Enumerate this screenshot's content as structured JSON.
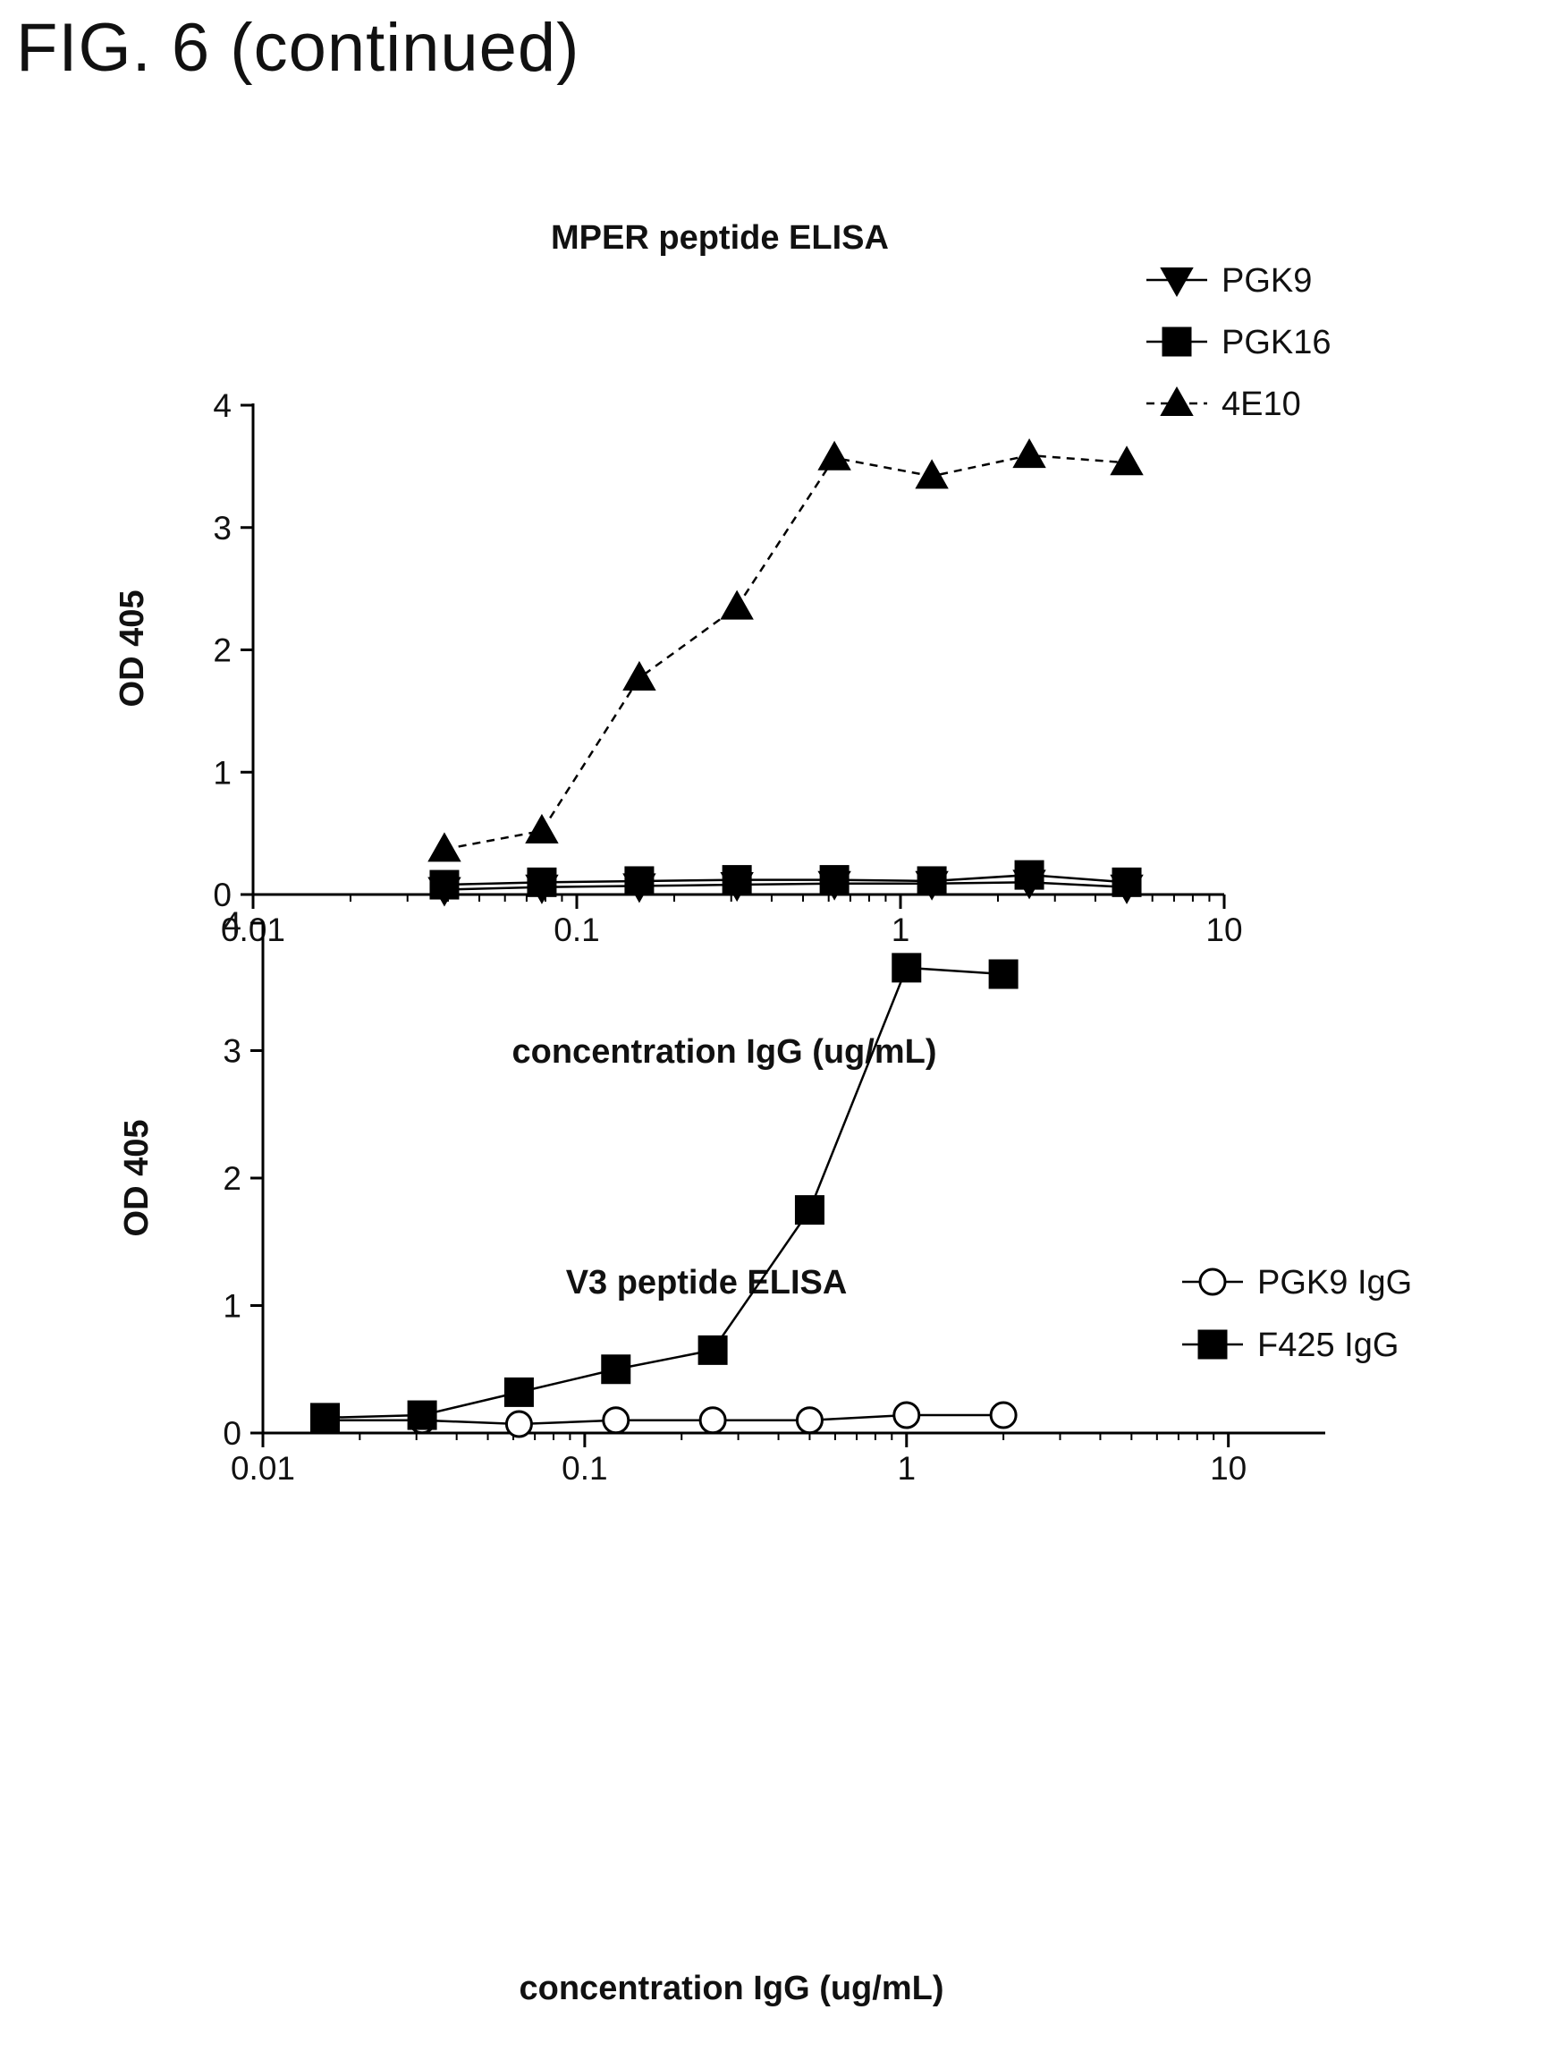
{
  "figure_title": "FIG. 6 (continued)",
  "chart_data": [
    {
      "type": "line",
      "title": "MPER peptide ELISA",
      "xlabel": "concentration IgG (ug/mL)",
      "ylabel": "OD 405",
      "xscale": "log",
      "xlim": [
        0.01,
        10
      ],
      "ylim": [
        0,
        4
      ],
      "xticks": [
        0.01,
        0.1,
        1,
        10
      ],
      "xtick_labels": [
        "0.01",
        "0.1",
        "1",
        "10"
      ],
      "yticks": [
        0,
        1,
        2,
        3,
        4
      ],
      "ytick_labels": [
        "0",
        "1",
        "2",
        "3",
        "4"
      ],
      "legend_position": "top-right",
      "series": [
        {
          "name": "PGK9",
          "marker": "triangle-down",
          "fill": "#000000",
          "dash": "solid",
          "x": [
            0.039,
            0.078,
            0.156,
            0.3125,
            0.625,
            1.25,
            2.5,
            5
          ],
          "y": [
            0.04,
            0.06,
            0.07,
            0.08,
            0.09,
            0.09,
            0.1,
            0.06
          ]
        },
        {
          "name": "PGK16",
          "marker": "square",
          "fill": "#000000",
          "dash": "solid",
          "x": [
            0.039,
            0.078,
            0.156,
            0.3125,
            0.625,
            1.25,
            2.5,
            5
          ],
          "y": [
            0.08,
            0.1,
            0.11,
            0.12,
            0.12,
            0.11,
            0.16,
            0.1
          ]
        },
        {
          "name": "4E10",
          "marker": "triangle-up",
          "fill": "#000000",
          "dash": "dashed",
          "x": [
            0.039,
            0.078,
            0.156,
            0.3125,
            0.625,
            1.25,
            2.5,
            5
          ],
          "y": [
            0.37,
            0.52,
            1.77,
            2.35,
            3.57,
            3.42,
            3.59,
            3.53
          ]
        }
      ]
    },
    {
      "type": "line",
      "title": "V3 peptide ELISA",
      "xlabel": "concentration IgG (ug/mL)",
      "ylabel": "OD 405",
      "xscale": "log",
      "xlim": [
        0.01,
        20
      ],
      "ylim": [
        0,
        4
      ],
      "xticks": [
        0.01,
        0.1,
        1,
        10
      ],
      "xtick_labels": [
        "0.01",
        "0.1",
        "1",
        "10"
      ],
      "yticks": [
        0,
        1,
        2,
        3,
        4
      ],
      "ytick_labels": [
        "0",
        "1",
        "2",
        "3",
        "4"
      ],
      "legend_position": "top-right",
      "series": [
        {
          "name": "PGK9 IgG",
          "marker": "circle",
          "fill": "#ffffff",
          "dash": "solid",
          "x": [
            0.0156,
            0.03125,
            0.0625,
            0.125,
            0.25,
            0.5,
            1,
            2
          ],
          "y": [
            0.1,
            0.1,
            0.07,
            0.1,
            0.1,
            0.1,
            0.14,
            0.14
          ]
        },
        {
          "name": "F425 IgG",
          "marker": "square",
          "fill": "#000000",
          "dash": "solid",
          "x": [
            0.0156,
            0.03125,
            0.0625,
            0.125,
            0.25,
            0.5,
            1,
            2
          ],
          "y": [
            0.12,
            0.14,
            0.32,
            0.5,
            0.65,
            1.75,
            3.65,
            3.6
          ]
        }
      ]
    }
  ]
}
